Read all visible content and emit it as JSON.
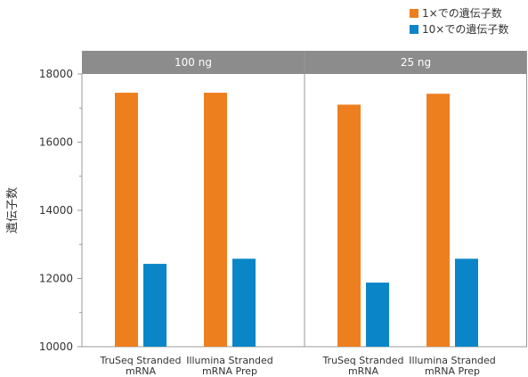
{
  "chart_data": {
    "type": "bar",
    "ylabel": "遺伝子数",
    "ylim": [
      10000,
      18000
    ],
    "yticks": [
      10000,
      12000,
      14000,
      16000,
      18000
    ],
    "legend_position": "top-right",
    "legend": [
      {
        "name": "1×での遺伝子数",
        "color": "#ED7F1E"
      },
      {
        "name": "10×での遺伝子数",
        "color": "#0A85C8"
      }
    ],
    "panel_color": "#8C8C8C",
    "panels": [
      {
        "label": "100 ng",
        "categories": [
          {
            "lines": [
              "TruSeq Stranded",
              "mRNA"
            ]
          },
          {
            "lines": [
              "Illumina Stranded",
              "mRNA Prep"
            ]
          }
        ],
        "series": [
          {
            "name": "1×での遺伝子数",
            "values": [
              17450,
              17450
            ]
          },
          {
            "name": "10×での遺伝子数",
            "values": [
              12430,
              12580
            ]
          }
        ]
      },
      {
        "label": "25 ng",
        "categories": [
          {
            "lines": [
              "TruSeq Stranded",
              "mRNA"
            ]
          },
          {
            "lines": [
              "Illumina Stranded",
              "mRNA Prep"
            ]
          }
        ],
        "series": [
          {
            "name": "1×での遺伝子数",
            "values": [
              17100,
              17420
            ]
          },
          {
            "name": "10×での遺伝子数",
            "values": [
              11880,
              12580
            ]
          }
        ]
      }
    ]
  }
}
